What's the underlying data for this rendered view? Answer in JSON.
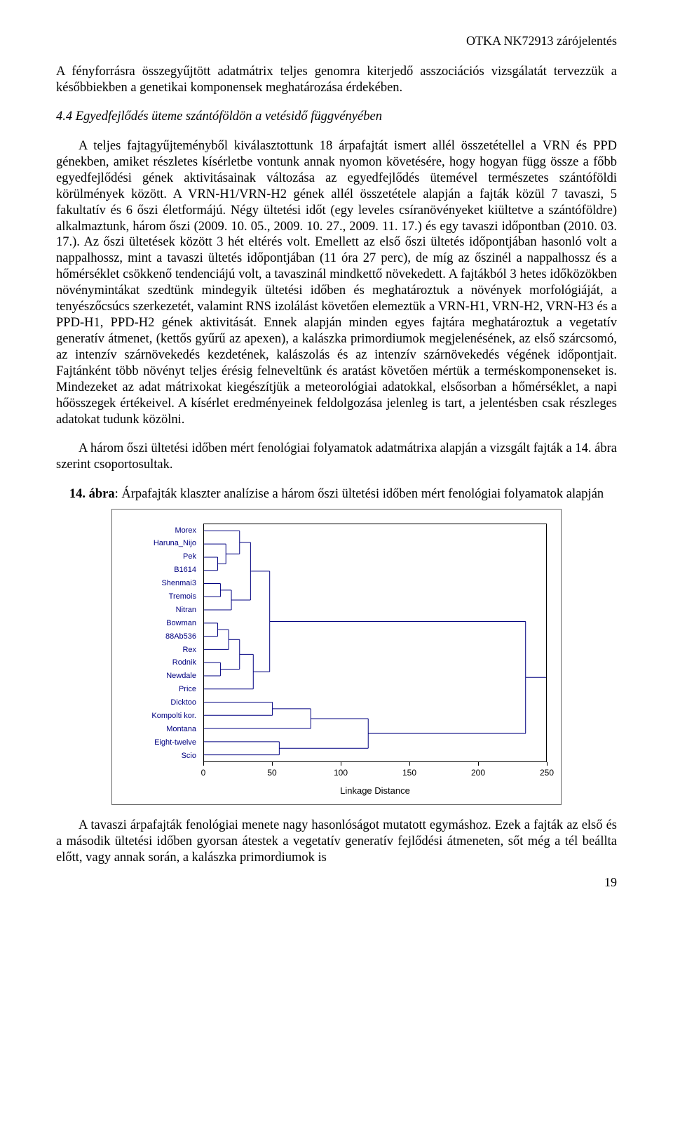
{
  "header": {
    "right": "OTKA NK72913 zárójelentés"
  },
  "para1": "A fényforrásra összegyűjtött adatmátrix teljes genomra kiterjedő asszociációs vizsgálatát tervezzük a későbbiekben a genetikai komponensek meghatározása érdekében.",
  "sectionHeading": "4.4 Egyedfejlődés üteme szántóföldön a vetésidő függvényében",
  "para2": "A teljes fajtagyűjteményből kiválasztottunk 18 árpafajtát ismert allél összetétellel a VRN és PPD génekben, amiket részletes kísérletbe vontunk annak nyomon követésére, hogy hogyan függ össze a főbb egyedfejlődési gének aktivitásainak változása az egyedfejlődés ütemével természetes szántóföldi körülmények között. A VRN-H1/VRN-H2 gének allél összetétele alapján a fajták közül 7 tavaszi, 5 fakultatív és 6 őszi életformájú. Négy ültetési időt (egy leveles csíranövényeket kiültetve a szántóföldre) alkalmaztunk, három őszi (2009. 10. 05., 2009. 10. 27., 2009. 11. 17.) és egy tavaszi időpontban (2010. 03. 17.). Az őszi ültetések között 3 hét eltérés volt. Emellett az első őszi ültetés időpontjában hasonló volt a nappalhossz, mint a tavaszi ültetés időpontjában (11 óra 27 perc), de míg az őszinél a nappalhossz és a hőmérséklet csökkenő tendenciájú volt, a tavaszinál mindkettő növekedett. A fajtákból 3 hetes időközökben növénymintákat szedtünk mindegyik ültetési időben és meghatároztuk a növények morfológiáját, a tenyészőcsúcs szerkezetét, valamint RNS izolálást követően elemeztük a VRN-H1, VRN-H2, VRN-H3 és a PPD-H1, PPD-H2 gének aktivitását. Ennek alapján minden egyes fajtára meghatároztuk a vegetatív generatív átmenet, (kettős gyűrű az apexen), a kalászka primordiumok megjelenésének, az első szárcsomó, az intenzív szárnövekedés kezdetének, kalászolás és az intenzív szárnövekedés végének időpontjait. Fajtánként több növényt teljes érésig felneveltünk és aratást követően mértük a terméskomponenseket is. Mindezeket az adat mátrixokat kiegészítjük a meteorológiai adatokkal, elsősorban a hőmérséklet, a napi hőösszegek értékeivel. A kísérlet eredményeinek feldolgozása jelenleg is tart, a jelentésben csak részleges adatokat tudunk közölni.",
  "para3": "A három őszi ültetési időben mért fenológiai folyamatok adatmátrixa alapján a vizsgált fajták a 14. ábra szerint csoportosultak.",
  "figCaptionBold": "14. ábra",
  "figCaptionRest": ": Árpafajták klaszter analízise a három őszi ültetési időben mért fenológiai folyamatok alapján",
  "chart": {
    "yLabels": [
      "Morex",
      "Haruna_Nijo",
      "Pek",
      "B1614",
      "Shenmai3",
      "Tremois",
      "Nitran",
      "Bowman",
      "88Ab536",
      "Rex",
      "Rodnik",
      "Newdale",
      "Price",
      "Dicktoo",
      "Kompolti kor.",
      "Montana",
      "Eight-twelve",
      "Scio"
    ],
    "xTicks": [
      0,
      50,
      100,
      150,
      200,
      250
    ],
    "xMax": 250,
    "xAxisTitle": "Linkage Distance",
    "colors": {
      "line": "#000080",
      "labelColor": "#000080"
    }
  },
  "para4": "A tavaszi árpafajták fenológiai menete nagy hasonlóságot mutatott egymáshoz. Ezek a fajták az első és a második ültetési időben gyorsan átestek a vegetatív generatív fejlődési átmeneten, sőt még a tél beállta előtt, vagy annak során, a kalászka primordiumok is",
  "pageNum": "19"
}
